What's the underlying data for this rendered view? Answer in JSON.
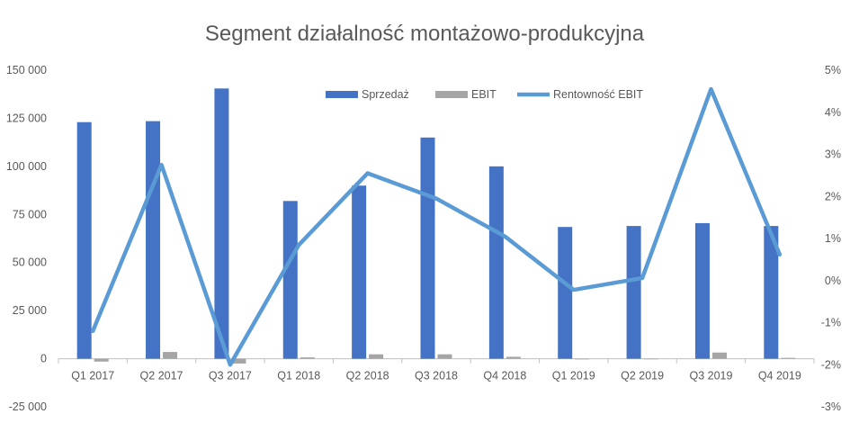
{
  "chart_data": {
    "type": "bar",
    "title": "Segment działalność montażowo-produkcyjna",
    "categories": [
      "Q1 2017",
      "Q2 2017",
      "Q3 2017",
      "Q1 2018",
      "Q2 2018",
      "Q3 2018",
      "Q4 2018",
      "Q1 2019",
      "Q2 2019",
      "Q3 2019",
      "Q4 2019"
    ],
    "series": [
      {
        "name": "Sprzedaż",
        "kind": "bar",
        "axis": "left",
        "color": "#4472C4",
        "values": [
          123000,
          123500,
          140500,
          82000,
          90000,
          115000,
          100000,
          68500,
          69000,
          70500,
          69000
        ]
      },
      {
        "name": "EBIT",
        "kind": "bar",
        "axis": "left",
        "color": "#A5A5A5",
        "values": [
          -1500,
          3500,
          -2500,
          700,
          2300,
          2300,
          1000,
          -150,
          40,
          3200,
          450
        ]
      },
      {
        "name": "Rentowność EBIT",
        "kind": "line",
        "axis": "right",
        "color": "#5B9BD5",
        "values": [
          -1.2,
          2.75,
          -2.0,
          0.85,
          2.55,
          1.95,
          1.05,
          -0.22,
          0.06,
          4.55,
          0.62
        ]
      }
    ],
    "y_left": {
      "min": -25000,
      "max": 150000,
      "step": 25000,
      "tick_labels": [
        "-25 000",
        "0",
        "25 000",
        "50 000",
        "75 000",
        "100 000",
        "125 000",
        "150 000"
      ]
    },
    "y_right": {
      "min": -3,
      "max": 5,
      "step": 1,
      "tick_labels": [
        "-3%",
        "-2%",
        "-1%",
        "0%",
        "1%",
        "2%",
        "3%",
        "4%",
        "5%"
      ]
    },
    "grid": false,
    "legend": {
      "placement": "top",
      "entries": [
        "Sprzedaż",
        "EBIT",
        "Rentowność EBIT"
      ]
    }
  }
}
